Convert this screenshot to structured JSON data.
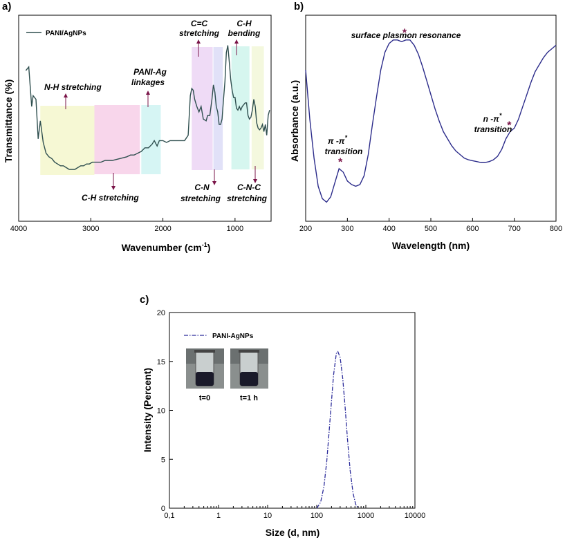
{
  "chart_data": [
    {
      "panel": "a)",
      "type": "line",
      "xlabel": "Wavenumber (cm",
      "xlabel_sup": "-1",
      "xlabel_end": ")",
      "ylabel": "Transmittance (%)",
      "xlim": [
        4000,
        500
      ],
      "x_ticks": [
        4000,
        3000,
        2000,
        1000
      ],
      "legend": "PANI/AgNPs",
      "legend_position": "top-left",
      "line_color": "#2f4f4f",
      "series": [
        {
          "x": [
            3900,
            3860,
            3820,
            3800,
            3760,
            3730,
            3700,
            3660,
            3620,
            3580,
            3540,
            3500,
            3460,
            3420,
            3380,
            3340,
            3300,
            3260,
            3220,
            3180,
            3140,
            3100,
            3060,
            3020,
            2980,
            2940,
            2900,
            2860,
            2800,
            2700,
            2600,
            2500,
            2450,
            2400,
            2350,
            2300,
            2250,
            2200,
            2150,
            2120,
            2080,
            2050,
            2000,
            1950,
            1900,
            1800,
            1700,
            1650,
            1620,
            1600,
            1580,
            1560,
            1530,
            1500,
            1470,
            1440,
            1400,
            1380,
            1350,
            1320,
            1300,
            1280,
            1260,
            1240,
            1220,
            1200,
            1180,
            1160,
            1140,
            1120,
            1110,
            1100,
            1080,
            1060,
            1040,
            1020,
            1000,
            980,
            960,
            940,
            920,
            900,
            880,
            860,
            840,
            820,
            800,
            780,
            760,
            740,
            720,
            700,
            680,
            660,
            640,
            620,
            600,
            580,
            560,
            540,
            520
          ],
          "y": [
            60,
            62,
            40,
            46,
            44,
            22,
            32,
            20,
            14,
            12,
            11,
            9,
            8,
            7,
            7,
            6,
            5,
            5,
            5,
            6,
            7,
            7,
            8,
            8,
            9,
            9,
            9,
            9,
            10,
            10,
            11,
            12,
            13,
            13,
            14,
            15,
            17,
            17,
            19,
            21,
            18,
            21,
            21,
            20,
            21,
            21,
            21,
            24,
            46,
            50,
            49,
            44,
            40,
            37,
            40,
            33,
            32,
            35,
            35,
            44,
            52,
            48,
            40,
            37,
            30,
            30,
            33,
            44,
            54,
            70,
            72,
            74,
            65,
            55,
            49,
            45,
            45,
            39,
            38,
            40,
            38,
            40,
            41,
            42,
            42,
            35,
            33,
            34,
            38,
            44,
            40,
            31,
            28,
            27,
            28,
            30,
            26,
            30,
            24,
            35,
            38
          ]
        }
      ],
      "bands": [
        {
          "from": 3700,
          "to": 2950,
          "color": "#f5f7cc"
        },
        {
          "from": 2950,
          "to": 2320,
          "color": "#f7cfe8"
        },
        {
          "from": 2300,
          "to": 2030,
          "color": "#cff3f2"
        },
        {
          "from": 1600,
          "to": 1310,
          "color": "#ecd5f5"
        },
        {
          "from": 1300,
          "to": 1170,
          "color": "#dcdcf7"
        },
        {
          "from": 1050,
          "to": 800,
          "color": "#cff5ec"
        },
        {
          "from": 770,
          "to": 600,
          "color": "#f2f7d8"
        }
      ],
      "annotations": [
        {
          "label": "N-H stretching",
          "line2": ""
        },
        {
          "label": "C-H stretching",
          "line2": ""
        },
        {
          "label": "PANI-Ag",
          "line2": "linkages"
        },
        {
          "label": "C=C",
          "line2": "stretching"
        },
        {
          "label": "C-N",
          "line2": "stretching"
        },
        {
          "label": "C-H",
          "line2": "bending"
        },
        {
          "label": "C-N-C",
          "line2": "stretching"
        }
      ],
      "arrow_color": "#7a1448"
    },
    {
      "panel": "b)",
      "type": "line",
      "xlabel": "Wavelength (nm)",
      "ylabel": "Absorbance (a.u.)",
      "xlim": [
        200,
        800
      ],
      "x_ticks": [
        200,
        300,
        400,
        500,
        600,
        700,
        800
      ],
      "line_color": "#2b2b8a",
      "series": [
        {
          "x": [
            200,
            210,
            220,
            230,
            240,
            250,
            260,
            270,
            280,
            290,
            300,
            310,
            320,
            330,
            340,
            350,
            360,
            370,
            380,
            390,
            400,
            410,
            420,
            430,
            440,
            450,
            460,
            470,
            480,
            490,
            500,
            510,
            520,
            530,
            540,
            550,
            560,
            570,
            580,
            590,
            600,
            610,
            620,
            630,
            640,
            650,
            660,
            670,
            680,
            690,
            700,
            710,
            720,
            730,
            740,
            750,
            760,
            770,
            780,
            790,
            800
          ],
          "y": [
            0.78,
            0.5,
            0.28,
            0.12,
            0.05,
            0.03,
            0.06,
            0.14,
            0.22,
            0.2,
            0.15,
            0.13,
            0.12,
            0.13,
            0.18,
            0.3,
            0.47,
            0.63,
            0.78,
            0.88,
            0.93,
            0.95,
            0.95,
            0.94,
            0.95,
            0.95,
            0.92,
            0.87,
            0.8,
            0.72,
            0.64,
            0.56,
            0.49,
            0.43,
            0.39,
            0.35,
            0.32,
            0.3,
            0.28,
            0.27,
            0.265,
            0.26,
            0.255,
            0.255,
            0.26,
            0.27,
            0.29,
            0.33,
            0.39,
            0.43,
            0.45,
            0.5,
            0.57,
            0.64,
            0.71,
            0.77,
            0.81,
            0.85,
            0.88,
            0.9,
            0.92
          ]
        }
      ],
      "markers": [
        {
          "x": 283,
          "label_1": "π -π",
          "label_sup": "*",
          "label_2": "transition"
        },
        {
          "x": 437,
          "label_1": "surface plasmon resonance",
          "label_sup": "",
          "label_2": ""
        },
        {
          "x": 688,
          "label_1": "n -π",
          "label_sup": "*",
          "label_2": "transition"
        }
      ],
      "marker_symbol": "*",
      "marker_color": "#7a1448"
    },
    {
      "panel": "c)",
      "type": "line",
      "xlabel": "Size (d, nm)",
      "ylabel": "Intensity (Percent)",
      "x_scale": "log",
      "xlim": [
        0.1,
        10000
      ],
      "x_tick_labels": [
        "0,1",
        "1",
        "10",
        "100",
        "1000",
        "10000"
      ],
      "ylim": [
        0,
        20
      ],
      "y_ticks": [
        0,
        5,
        10,
        15,
        20
      ],
      "legend": "PANI-AgNPs",
      "legend_position": "top-left",
      "line_style": "dash-dot",
      "line_color": "#2b2b9a",
      "series": [
        {
          "name": "PANI-AgNPs",
          "x": [
            100,
            120,
            140,
            160,
            180,
            200,
            220,
            250,
            270,
            300,
            340,
            380,
            420,
            480,
            550,
            620,
            700
          ],
          "y": [
            0,
            0.6,
            2.2,
            4.8,
            8.0,
            11.0,
            13.6,
            15.8,
            16.0,
            15.4,
            13.2,
            10.2,
            7.2,
            3.8,
            1.5,
            0.4,
            0
          ]
        }
      ],
      "photos": [
        {
          "label": "t=0"
        },
        {
          "label": "t=1 h"
        }
      ]
    }
  ]
}
